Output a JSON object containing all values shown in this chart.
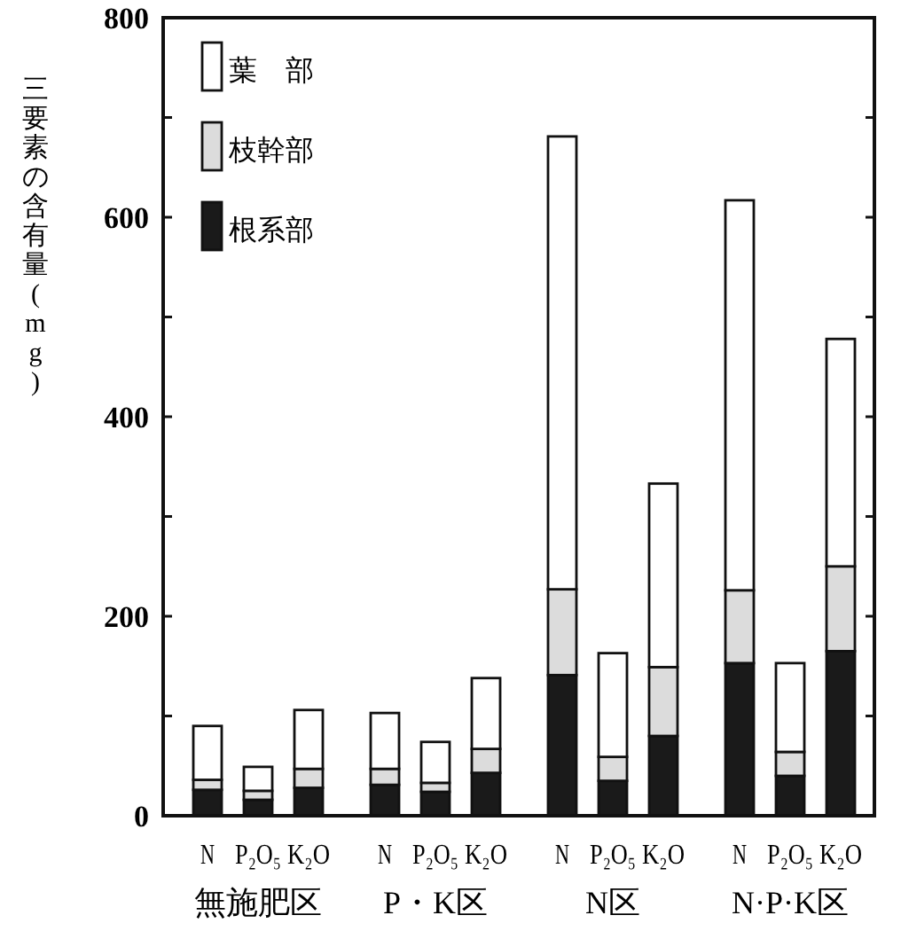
{
  "chart_data": {
    "type": "bar",
    "stacked": true,
    "ylabel": "三要素の含有量(mg)",
    "categories": [
      "N",
      "P₂O₅",
      "K₂O",
      "N",
      "P₂O₅",
      "K₂O",
      "N",
      "P₂O₅",
      "K₂O",
      "N",
      "P₂O₅",
      "K₂O"
    ],
    "annotations": [
      "無施肥区",
      "P・K区",
      "N区",
      "N·P·K区"
    ],
    "series": [
      {
        "name": "根系部",
        "color": "#1a1a1a",
        "values": [
          26,
          16,
          28,
          31,
          24,
          43,
          141,
          35,
          80,
          153,
          40,
          165
        ]
      },
      {
        "name": "枝幹部",
        "color": "#dcdcdc",
        "values": [
          10,
          9,
          19,
          16,
          9,
          24,
          86,
          24,
          69,
          73,
          24,
          85
        ]
      },
      {
        "name": "葉　部",
        "color": "#ffffff",
        "values": [
          54,
          24,
          59,
          56,
          41,
          71,
          454,
          104,
          184,
          391,
          89,
          228
        ]
      }
    ],
    "ylim": [
      0,
      800
    ],
    "yticks": [
      0,
      {
        "value": 100,
        "label": null
      },
      200,
      {
        "value": 300,
        "label": null
      },
      400,
      {
        "value": 500,
        "label": null
      },
      600,
      {
        "value": 700,
        "label": null
      },
      800
    ],
    "legend": "top left",
    "grid": false
  }
}
